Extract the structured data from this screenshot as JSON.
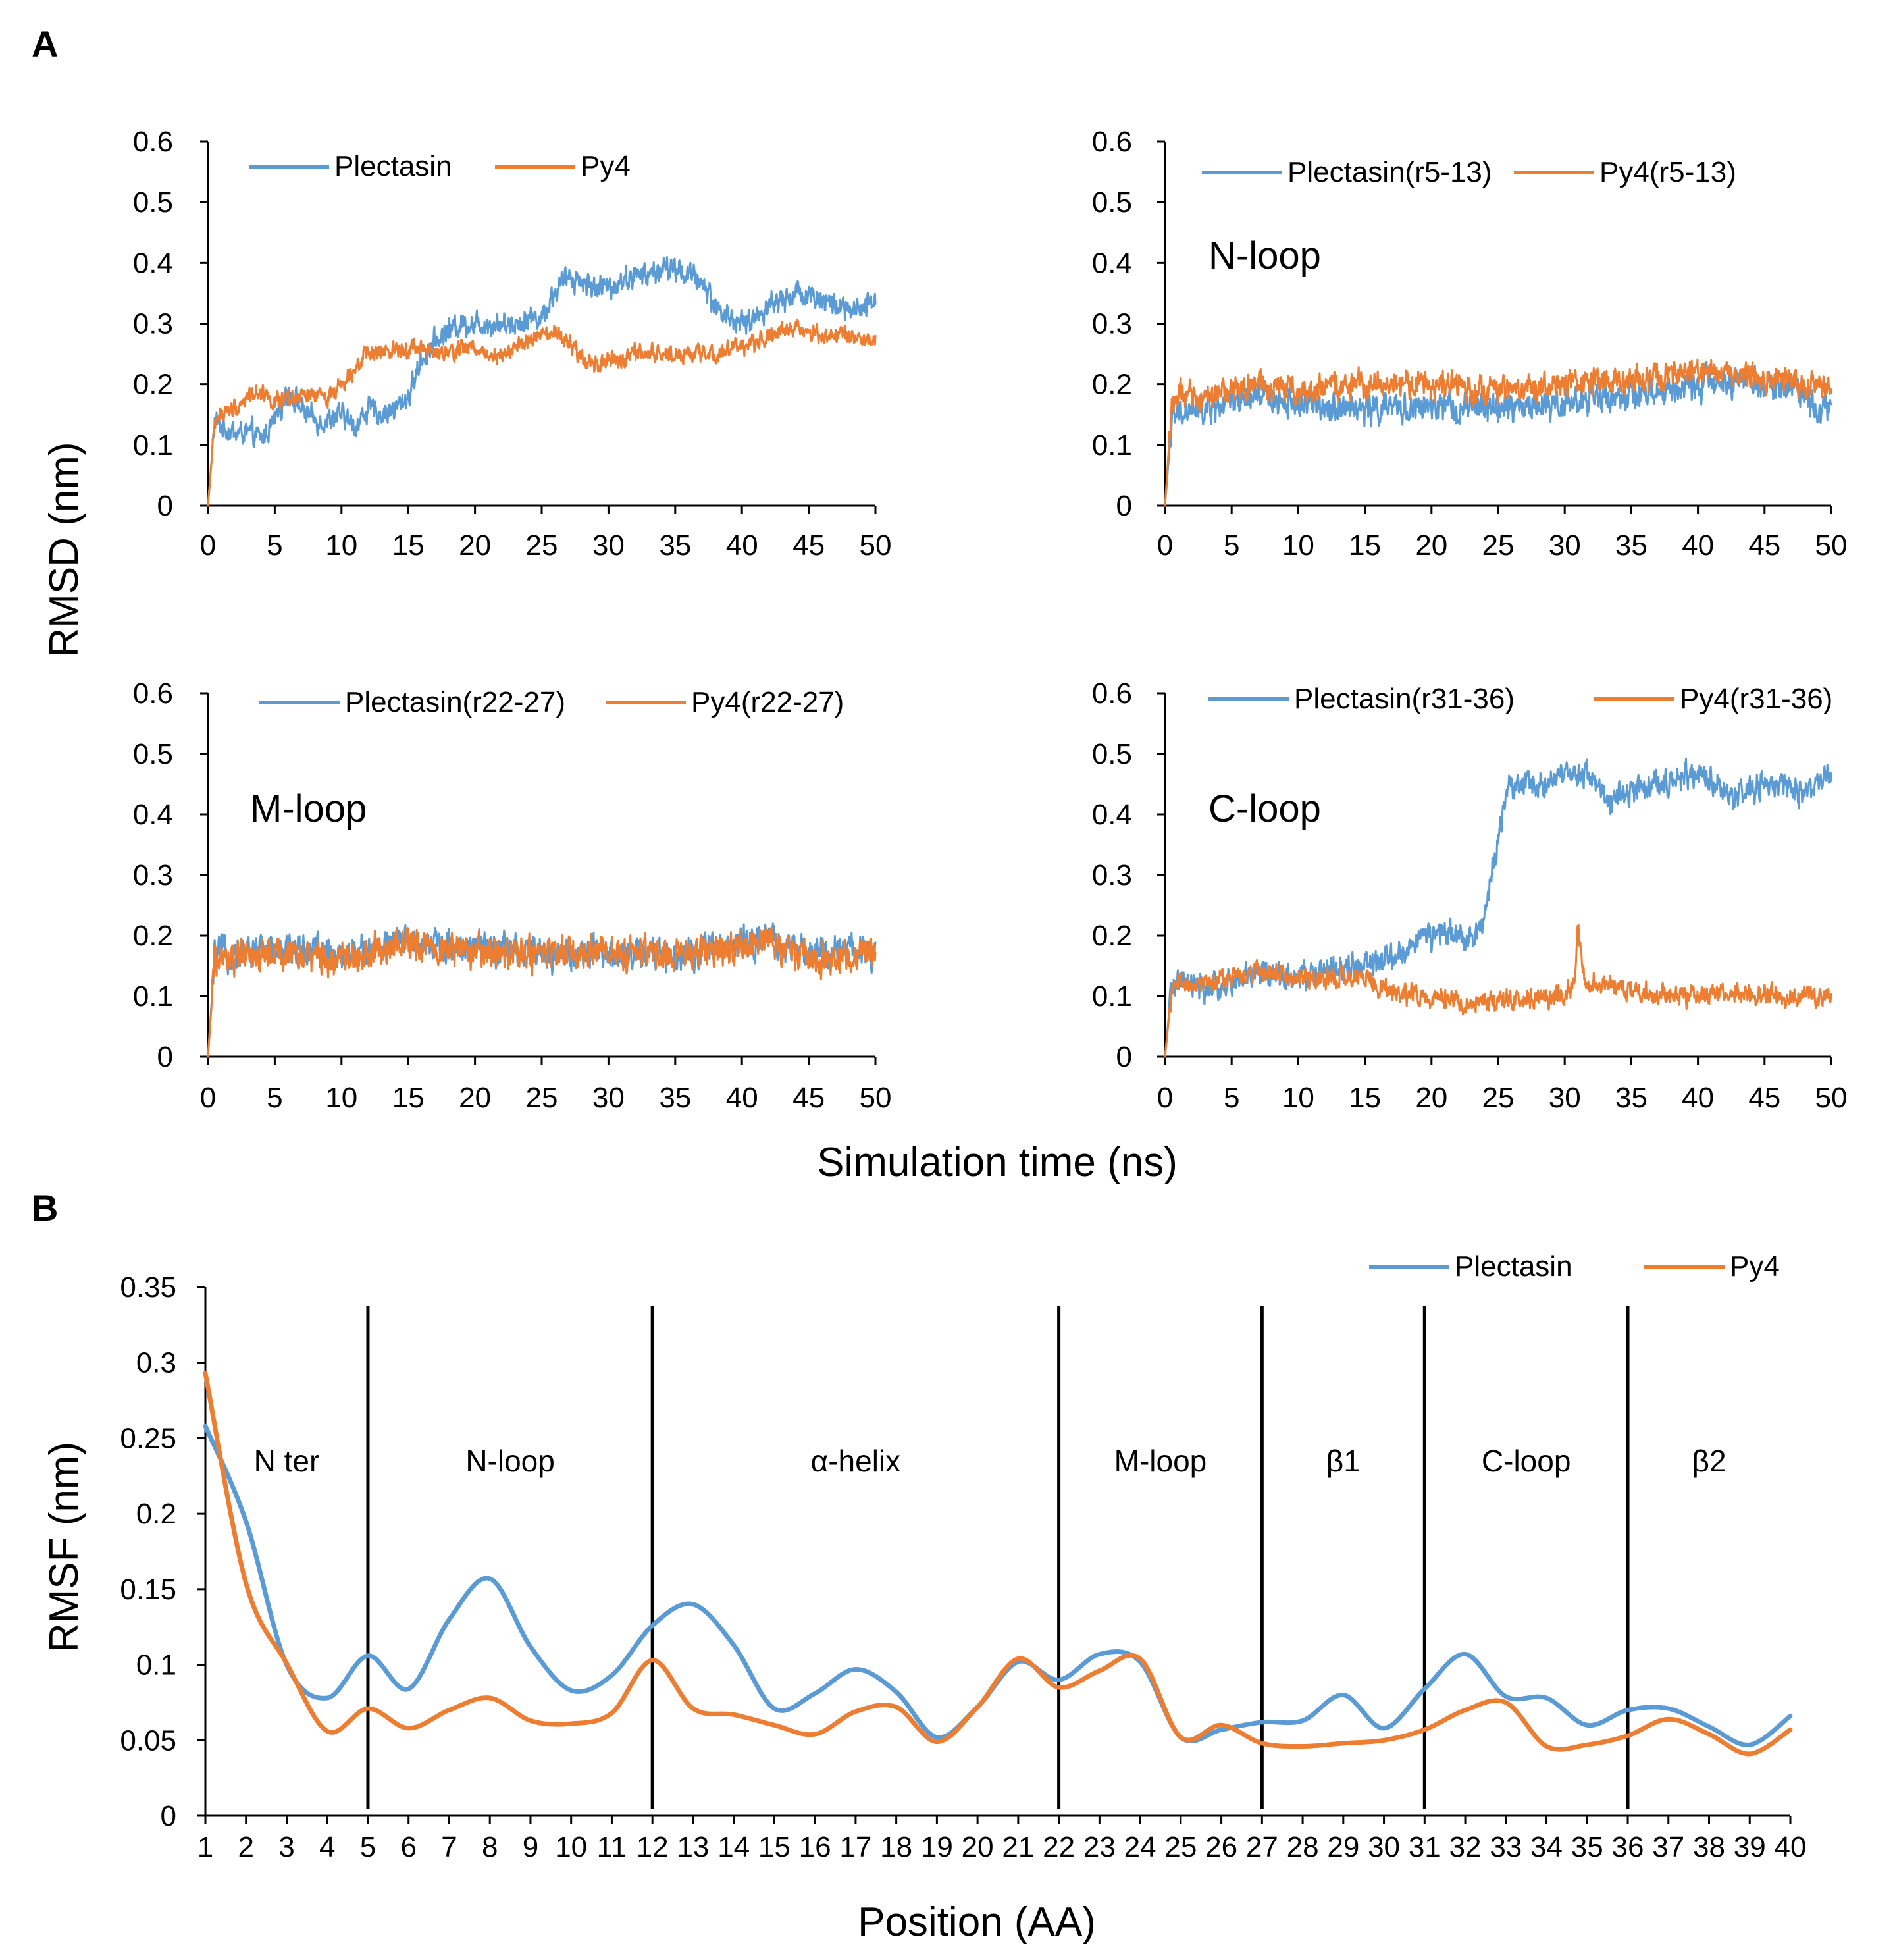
{
  "figure": {
    "panel_a_letter": "A",
    "panel_b_letter": "B",
    "shared_ylabel_a": "RMSD (nm)",
    "shared_xlabel_a": "Simulation time (ns)",
    "colors": {
      "plectasin": "#5B9BD5",
      "py4": "#ED7D31"
    }
  },
  "chart_data": [
    {
      "type": "line",
      "panel": "A1",
      "title": "",
      "region_label": "",
      "xlabel": "Simulation time (ns)",
      "ylabel": "RMSD (nm)",
      "xlim": [
        0,
        50
      ],
      "ylim": [
        0,
        0.6
      ],
      "xticks": [
        "0",
        "5",
        "10",
        "15",
        "20",
        "25",
        "30",
        "35",
        "40",
        "45",
        "50"
      ],
      "yticks": [
        "0",
        "0.1",
        "0.2",
        "0.3",
        "0.4",
        "0.5",
        "0.6"
      ],
      "legend": [
        "Plectasin",
        "Py4"
      ],
      "series": [
        {
          "name": "Plectasin",
          "noise": 0.016,
          "x": [
            0,
            0.5,
            1,
            2,
            3,
            4,
            5,
            6,
            7,
            8,
            9,
            10,
            11,
            12,
            13,
            14,
            15,
            16,
            17,
            18,
            19,
            20,
            21,
            22,
            23,
            24,
            25,
            26,
            27,
            28,
            29,
            30,
            31,
            32,
            33,
            34,
            35,
            36,
            37,
            38,
            39,
            40,
            41,
            42,
            43,
            44,
            45,
            46,
            47,
            48,
            49,
            50
          ],
          "y": [
            0,
            0.14,
            0.13,
            0.12,
            0.12,
            0.11,
            0.14,
            0.19,
            0.16,
            0.14,
            0.14,
            0.15,
            0.13,
            0.16,
            0.15,
            0.16,
            0.18,
            0.24,
            0.27,
            0.29,
            0.3,
            0.3,
            0.3,
            0.3,
            0.3,
            0.31,
            0.31,
            0.35,
            0.38,
            0.37,
            0.36,
            0.36,
            0.37,
            0.38,
            0.38,
            0.39,
            0.39,
            0.38,
            0.37,
            0.33,
            0.31,
            0.3,
            0.31,
            0.33,
            0.34,
            0.35,
            0.35,
            0.34,
            0.33,
            0.32,
            0.32,
            0.34
          ]
        },
        {
          "name": "Py4",
          "noise": 0.012,
          "x": [
            0,
            0.5,
            1,
            2,
            3,
            4,
            5,
            6,
            7,
            8,
            9,
            10,
            11,
            12,
            13,
            14,
            15,
            16,
            17,
            18,
            19,
            20,
            21,
            22,
            23,
            24,
            25,
            26,
            27,
            28,
            29,
            30,
            31,
            32,
            33,
            34,
            35,
            36,
            37,
            38,
            39,
            40,
            41,
            42,
            43,
            44,
            45,
            46,
            47,
            48,
            49,
            50
          ],
          "y": [
            0,
            0.14,
            0.15,
            0.16,
            0.18,
            0.19,
            0.17,
            0.17,
            0.18,
            0.18,
            0.18,
            0.2,
            0.23,
            0.25,
            0.25,
            0.26,
            0.26,
            0.26,
            0.25,
            0.25,
            0.26,
            0.26,
            0.25,
            0.25,
            0.26,
            0.27,
            0.28,
            0.28,
            0.27,
            0.24,
            0.23,
            0.24,
            0.24,
            0.25,
            0.25,
            0.25,
            0.25,
            0.25,
            0.25,
            0.25,
            0.26,
            0.26,
            0.27,
            0.28,
            0.29,
            0.29,
            0.29,
            0.28,
            0.28,
            0.28,
            0.27,
            0.27
          ]
        }
      ]
    },
    {
      "type": "line",
      "panel": "A2",
      "title": "",
      "region_label": "N-loop",
      "xlabel": "Simulation time (ns)",
      "ylabel": "RMSD (nm)",
      "xlim": [
        0,
        50
      ],
      "ylim": [
        0,
        0.6
      ],
      "xticks": [
        "0",
        "5",
        "10",
        "15",
        "20",
        "25",
        "30",
        "35",
        "40",
        "45",
        "50"
      ],
      "yticks": [
        "0",
        "0.1",
        "0.2",
        "0.3",
        "0.4",
        "0.5",
        "0.6"
      ],
      "legend": [
        "Plectasin(r5-13)",
        "Py4(r5-13)"
      ],
      "series": [
        {
          "name": "Plectasin(r5-13)",
          "noise": 0.02,
          "x": [
            0,
            0.5,
            1,
            3,
            5,
            7,
            10,
            15,
            20,
            25,
            30,
            35,
            38,
            40,
            42,
            45,
            48,
            49,
            50
          ],
          "y": [
            0,
            0.14,
            0.15,
            0.16,
            0.17,
            0.18,
            0.17,
            0.16,
            0.16,
            0.16,
            0.17,
            0.18,
            0.19,
            0.2,
            0.21,
            0.2,
            0.19,
            0.16,
            0.16
          ]
        },
        {
          "name": "Py4(r5-13)",
          "noise": 0.018,
          "x": [
            0,
            0.5,
            1,
            3,
            5,
            7,
            10,
            15,
            20,
            25,
            30,
            35,
            38,
            40,
            42,
            45,
            48,
            50
          ],
          "y": [
            0,
            0.17,
            0.18,
            0.18,
            0.19,
            0.2,
            0.19,
            0.2,
            0.2,
            0.19,
            0.2,
            0.21,
            0.21,
            0.22,
            0.22,
            0.21,
            0.2,
            0.2
          ]
        }
      ]
    },
    {
      "type": "line",
      "panel": "A3",
      "title": "",
      "region_label": "M-loop",
      "xlabel": "Simulation time (ns)",
      "ylabel": "RMSD (nm)",
      "xlim": [
        0,
        50
      ],
      "ylim": [
        0,
        0.6
      ],
      "xticks": [
        "0",
        "5",
        "10",
        "15",
        "20",
        "25",
        "30",
        "35",
        "40",
        "45",
        "50"
      ],
      "yticks": [
        "0",
        "0.1",
        "0.2",
        "0.3",
        "0.4",
        "0.5",
        "0.6"
      ],
      "legend": [
        "Plectasin(r22-27)",
        "Py4(r22-27)"
      ],
      "series": [
        {
          "name": "Plectasin(r22-27)",
          "noise": 0.022,
          "x": [
            0,
            0.5,
            1,
            5,
            10,
            15,
            20,
            25,
            30,
            35,
            40,
            42,
            45,
            50
          ],
          "y": [
            0,
            0.17,
            0.17,
            0.18,
            0.17,
            0.19,
            0.18,
            0.17,
            0.17,
            0.17,
            0.19,
            0.19,
            0.17,
            0.18
          ]
        },
        {
          "name": "Py4(r22-27)",
          "noise": 0.022,
          "x": [
            0,
            0.5,
            1,
            5,
            10,
            15,
            20,
            25,
            30,
            35,
            40,
            42,
            45,
            50
          ],
          "y": [
            0,
            0.16,
            0.16,
            0.17,
            0.16,
            0.19,
            0.17,
            0.17,
            0.17,
            0.17,
            0.18,
            0.19,
            0.16,
            0.17
          ]
        }
      ]
    },
    {
      "type": "line",
      "panel": "A4",
      "title": "",
      "region_label": "C-loop",
      "xlabel": "Simulation time (ns)",
      "ylabel": "RMSD (nm)",
      "xlim": [
        0,
        50
      ],
      "ylim": [
        0,
        0.6
      ],
      "xticks": [
        "0",
        "5",
        "10",
        "15",
        "20",
        "25",
        "30",
        "35",
        "40",
        "45",
        "50"
      ],
      "yticks": [
        "0",
        "0.1",
        "0.2",
        "0.3",
        "0.4",
        "0.5",
        "0.6"
      ],
      "legend": [
        "Plectasin(r31-36)",
        "Py4(r31-36)"
      ],
      "series": [
        {
          "name": "Plectasin(r31-36)",
          "noise": 0.018,
          "x": [
            0,
            0.5,
            1,
            3,
            5,
            7,
            10,
            12,
            15,
            17,
            18,
            19,
            20,
            22,
            23,
            24,
            24.5,
            25,
            25.5,
            26,
            28,
            30,
            32,
            33,
            35,
            37,
            40,
            42,
            43,
            45,
            47,
            48,
            50
          ],
          "y": [
            0,
            0.12,
            0.12,
            0.11,
            0.12,
            0.14,
            0.13,
            0.14,
            0.15,
            0.16,
            0.17,
            0.2,
            0.2,
            0.2,
            0.2,
            0.22,
            0.3,
            0.36,
            0.42,
            0.45,
            0.45,
            0.46,
            0.47,
            0.42,
            0.44,
            0.45,
            0.47,
            0.44,
            0.43,
            0.45,
            0.44,
            0.44,
            0.46
          ]
        },
        {
          "name": "Py4(r31-36)",
          "noise": 0.014,
          "x": [
            0,
            0.5,
            1,
            3,
            5,
            7,
            10,
            12,
            15,
            17,
            18,
            20,
            22,
            25,
            28,
            30,
            30.7,
            31,
            31.6,
            32,
            33,
            35,
            37,
            40,
            42,
            45,
            47,
            48,
            50
          ],
          "y": [
            0,
            0.11,
            0.12,
            0.12,
            0.13,
            0.14,
            0.13,
            0.13,
            0.13,
            0.11,
            0.1,
            0.1,
            0.09,
            0.09,
            0.1,
            0.1,
            0.12,
            0.21,
            0.12,
            0.12,
            0.12,
            0.11,
            0.1,
            0.1,
            0.11,
            0.1,
            0.1,
            0.1,
            0.1
          ]
        }
      ]
    },
    {
      "type": "line",
      "panel": "B",
      "title": "",
      "xlabel": "Position (AA)",
      "ylabel": "RMSF (nm)",
      "xlim": [
        1,
        40
      ],
      "ylim": [
        0,
        0.35
      ],
      "xticks": [
        "1",
        "2",
        "3",
        "4",
        "5",
        "6",
        "7",
        "8",
        "9",
        "10",
        "11",
        "12",
        "13",
        "14",
        "15",
        "16",
        "17",
        "18",
        "19",
        "20",
        "21",
        "22",
        "23",
        "24",
        "25",
        "26",
        "27",
        "28",
        "29",
        "30",
        "31",
        "32",
        "33",
        "34",
        "35",
        "36",
        "37",
        "38",
        "39",
        "40"
      ],
      "yticks": [
        "0",
        "0.05",
        "0.1",
        "0.15",
        "0.2",
        "0.25",
        "0.3",
        "0.35"
      ],
      "legend": [
        "Plectasin",
        "Py4"
      ],
      "dividers": [
        5,
        12,
        22,
        27,
        31,
        36
      ],
      "segments": [
        {
          "label": "N ter",
          "x": 3
        },
        {
          "label": "N-loop",
          "x": 8.5
        },
        {
          "label": "α-helix",
          "x": 17
        },
        {
          "label": "M-loop",
          "x": 24.5
        },
        {
          "label": "β1",
          "x": 29
        },
        {
          "label": "C-loop",
          "x": 33.5
        },
        {
          "label": "β2",
          "x": 38
        }
      ],
      "series": [
        {
          "name": "Plectasin",
          "x": [
            1,
            2,
            3,
            4,
            5,
            6,
            7,
            8,
            9,
            10,
            11,
            12,
            13,
            14,
            15,
            16,
            17,
            18,
            19,
            20,
            21,
            22,
            23,
            24,
            25,
            26,
            27,
            28,
            29,
            30,
            31,
            32,
            33,
            34,
            35,
            36,
            37,
            38,
            39,
            40
          ],
          "y": [
            0.258,
            0.195,
            0.1,
            0.078,
            0.106,
            0.084,
            0.13,
            0.157,
            0.112,
            0.083,
            0.093,
            0.126,
            0.14,
            0.113,
            0.071,
            0.081,
            0.097,
            0.082,
            0.052,
            0.072,
            0.102,
            0.09,
            0.107,
            0.102,
            0.052,
            0.057,
            0.062,
            0.063,
            0.08,
            0.058,
            0.084,
            0.107,
            0.079,
            0.078,
            0.06,
            0.07,
            0.071,
            0.059,
            0.047,
            0.066
          ]
        },
        {
          "name": "Py4",
          "x": [
            1,
            2,
            3,
            4,
            5,
            6,
            7,
            8,
            9,
            10,
            11,
            12,
            13,
            14,
            15,
            16,
            17,
            18,
            19,
            20,
            21,
            22,
            23,
            24,
            25,
            26,
            27,
            28,
            29,
            30,
            31,
            32,
            33,
            34,
            35,
            36,
            37,
            38,
            39,
            40
          ],
          "y": [
            0.293,
            0.154,
            0.101,
            0.056,
            0.071,
            0.058,
            0.07,
            0.078,
            0.063,
            0.061,
            0.068,
            0.103,
            0.071,
            0.067,
            0.06,
            0.054,
            0.069,
            0.072,
            0.049,
            0.072,
            0.104,
            0.085,
            0.096,
            0.104,
            0.052,
            0.06,
            0.048,
            0.046,
            0.048,
            0.05,
            0.057,
            0.07,
            0.075,
            0.046,
            0.047,
            0.053,
            0.064,
            0.054,
            0.041,
            0.057
          ]
        }
      ]
    }
  ]
}
